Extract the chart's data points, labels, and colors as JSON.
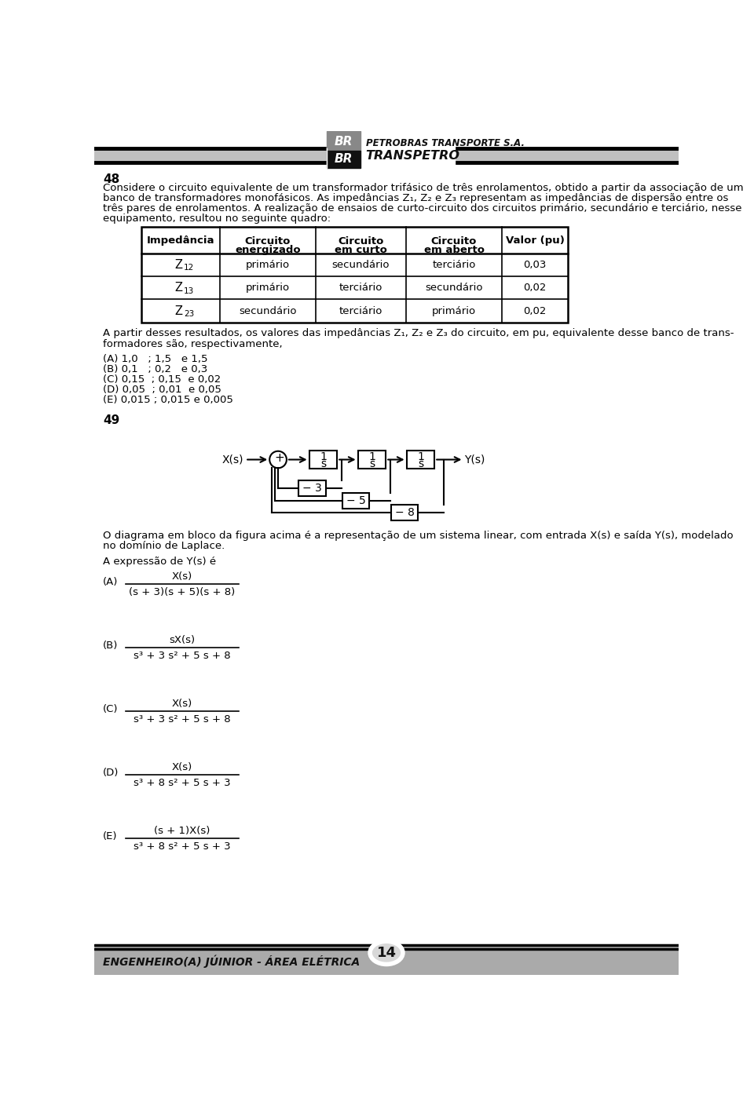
{
  "page_bg": "#ffffff",
  "page_number": "14",
  "footer_text": "ENGENHEIRO(A) JÚINIOR - ÁREA ELÉTRICA",
  "question_number_48": "48",
  "question_number_49": "49",
  "table_headers": [
    "Impedância",
    "Circuito\nenergizado",
    "Circuito\nem curto",
    "Circuito\nem aberto",
    "Valor (pu)"
  ],
  "table_rows": [
    [
      "primário",
      "secundário",
      "terciário",
      "0,03"
    ],
    [
      "primário",
      "terciário",
      "secundário",
      "0,02"
    ],
    [
      "secundário",
      "terciário",
      "primário",
      "0,02"
    ]
  ],
  "row_z_labels": [
    [
      "Z",
      "12"
    ],
    [
      "Z",
      "13"
    ],
    [
      "Z",
      "23"
    ]
  ],
  "options_48": [
    "(A) 1,0   ; 1,5   e 1,5",
    "(B) 0,1   ; 0,2   e 0,3",
    "(C) 0,15  ; 0,15  e 0,02",
    "(D) 0,05  ; 0,01  e 0,05",
    "(E) 0,015 ; 0,015 e 0,005"
  ],
  "options_49_labels": [
    "(A)",
    "(B)",
    "(C)",
    "(D)",
    "(E)"
  ],
  "options_49_nums": [
    "X(s)",
    "sX(s)",
    "X(s)",
    "X(s)",
    "(s + 1)X(s)"
  ],
  "options_49_dens": [
    "(s + 3)(s + 5)(s + 8)",
    "s³ + 3 s² + 5 s + 8",
    "s³ + 3 s² + 5 s + 8",
    "s³ + 8 s² + 5 s + 3",
    "s³ + 8 s² + 5 s + 3"
  ],
  "options_49_den_super": [
    "",
    "3,2",
    "3,2",
    "3,2",
    "3,2"
  ]
}
